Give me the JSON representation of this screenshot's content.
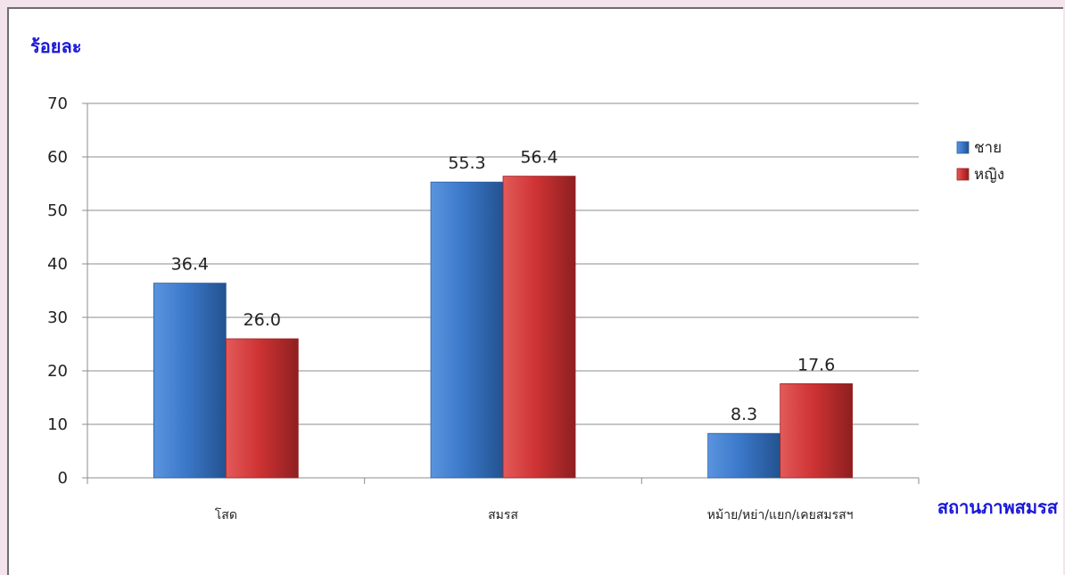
{
  "chart_data": {
    "type": "bar",
    "title": "",
    "ylabel": "ร้อยละ",
    "xlabel": "สถานภาพสมรส",
    "categories": [
      "โสด",
      "สมรส",
      "หม้าย/หย่า/แยก/เคยสมรสฯ"
    ],
    "series": [
      {
        "name": "ชาย",
        "values": [
          36.4,
          55.3,
          8.3
        ],
        "color": "#3b78c9"
      },
      {
        "name": "หญิง",
        "values": [
          26.0,
          56.4,
          17.6
        ],
        "color": "#cf3334"
      }
    ],
    "data_labels": [
      [
        "36.4",
        "55.3",
        "8.3"
      ],
      [
        "26.0",
        "56.4",
        "17.6"
      ]
    ],
    "ylim": [
      0,
      70
    ],
    "yticks": [
      "0",
      "10",
      "20",
      "30",
      "40",
      "50",
      "60",
      "70"
    ],
    "grid": true,
    "legend_position": "right"
  },
  "colors": {
    "accent_text": "#1a18d8",
    "page_background": "#f3e4ec",
    "gridline": "#8c8c8c"
  }
}
